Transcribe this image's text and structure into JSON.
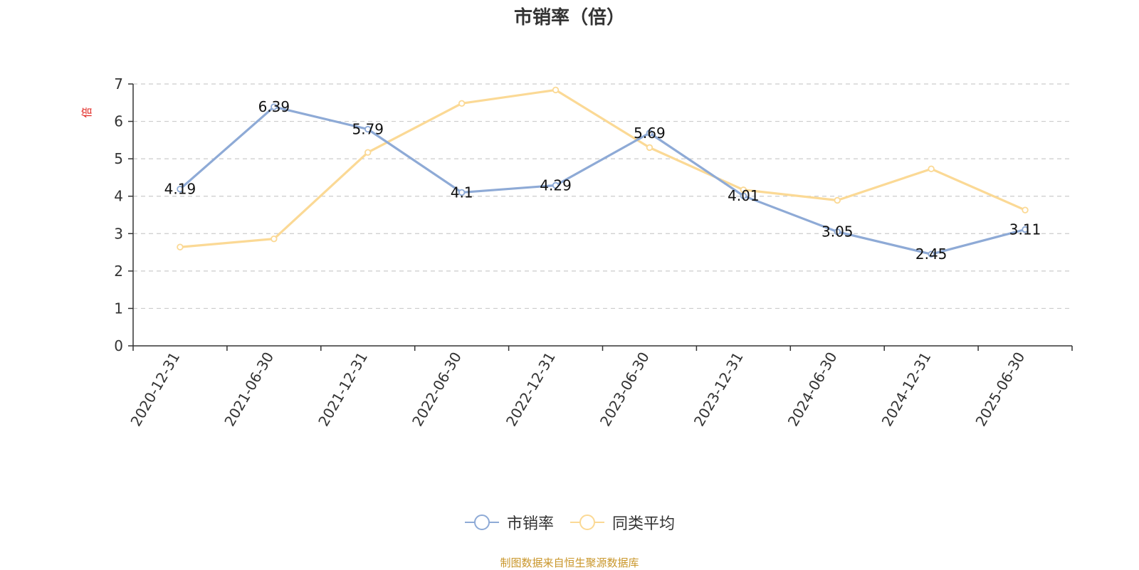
{
  "chart_data": {
    "type": "line",
    "title": "市销率（倍）",
    "ylabel": "倍",
    "xlabel": "",
    "ylim": [
      0,
      7
    ],
    "yticks": [
      0,
      1,
      2,
      3,
      4,
      5,
      6,
      7
    ],
    "grid": true,
    "legend_position": "bottom-center",
    "categories": [
      "2020-12-31",
      "2021-06-30",
      "2021-12-31",
      "2022-06-30",
      "2022-12-31",
      "2023-06-30",
      "2023-12-31",
      "2024-06-30",
      "2024-12-31",
      "2025-06-30"
    ],
    "series": [
      {
        "name": "市销率",
        "color": "#8eaad6",
        "values": [
          4.19,
          6.39,
          5.79,
          4.1,
          4.29,
          5.69,
          4.01,
          3.05,
          2.45,
          3.11
        ],
        "labels": [
          "4.19",
          "6.39",
          "5.79",
          "4.1",
          "4.29",
          "5.69",
          "4.01",
          "3.05",
          "2.45",
          "3.11"
        ]
      },
      {
        "name": "同类平均",
        "color": "#fbd995",
        "values": [
          2.64,
          2.86,
          5.17,
          6.48,
          6.84,
          5.3,
          4.17,
          3.89,
          4.73,
          3.63
        ]
      }
    ]
  },
  "footer": {
    "source": "制图数据来自恒生聚源数据库"
  }
}
